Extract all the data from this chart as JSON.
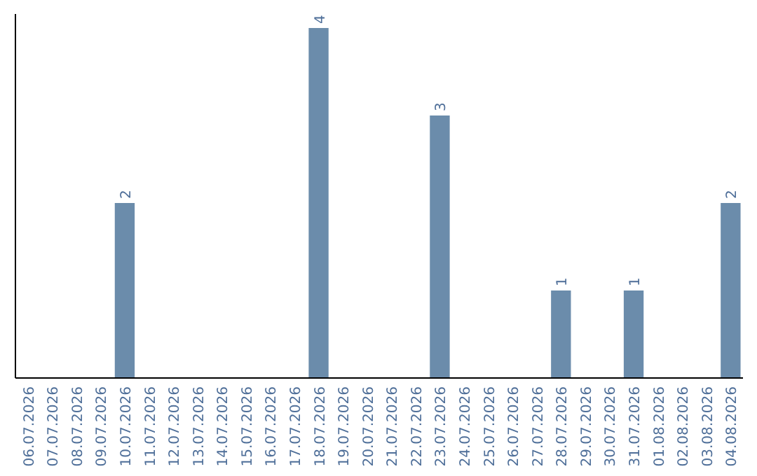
{
  "chart_data": {
    "type": "bar",
    "categories": [
      "06.07.2026",
      "07.07.2026",
      "08.07.2026",
      "09.07.2026",
      "10.07.2026",
      "11.07.2026",
      "12.07.2026",
      "13.07.2026",
      "14.07.2026",
      "15.07.2026",
      "16.07.2026",
      "17.07.2026",
      "18.07.2026",
      "19.07.2026",
      "20.07.2026",
      "21.07.2026",
      "22.07.2026",
      "23.07.2026",
      "24.07.2026",
      "25.07.2026",
      "26.07.2026",
      "27.07.2026",
      "28.07.2026",
      "29.07.2026",
      "30.07.2026",
      "31.07.2026",
      "01.08.2026",
      "02.08.2026",
      "03.08.2026",
      "04.08.2026"
    ],
    "values": [
      0,
      0,
      0,
      0,
      2,
      0,
      0,
      0,
      0,
      0,
      0,
      0,
      4,
      0,
      0,
      0,
      0,
      3,
      0,
      0,
      0,
      0,
      1,
      0,
      0,
      1,
      0,
      0,
      0,
      2
    ],
    "value_labels": [
      null,
      null,
      null,
      null,
      "2",
      null,
      null,
      null,
      null,
      null,
      null,
      null,
      "4",
      null,
      null,
      null,
      null,
      "3",
      null,
      null,
      null,
      null,
      "1",
      null,
      null,
      "1",
      null,
      null,
      null,
      "2"
    ],
    "color": "#6b8cab",
    "tick_labels": "x"
  }
}
